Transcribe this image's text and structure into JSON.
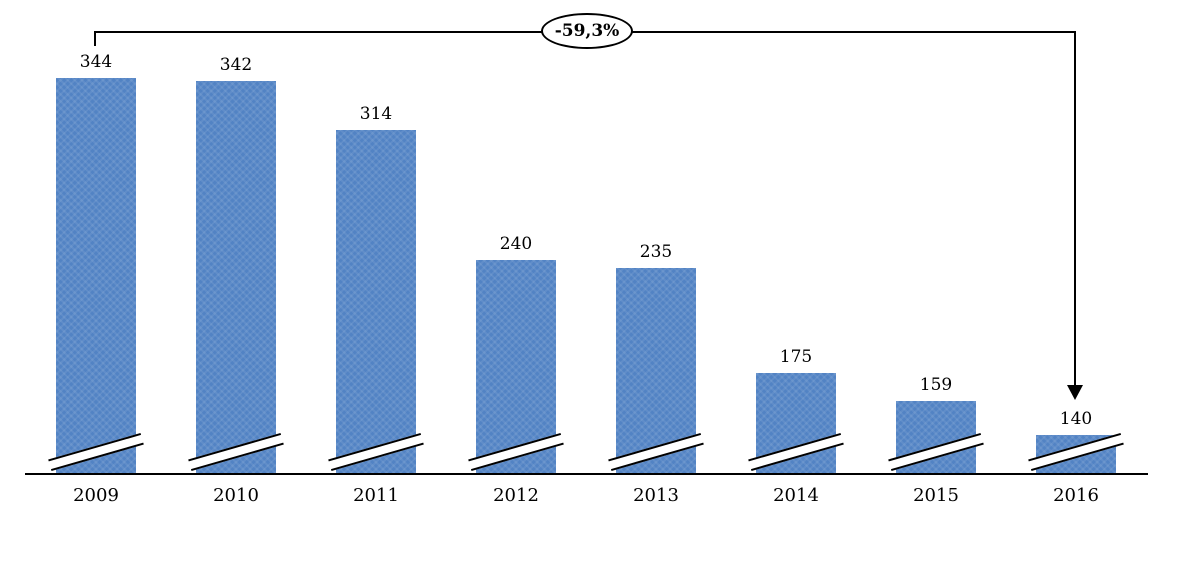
{
  "chart_data": {
    "type": "bar",
    "title": "",
    "xlabel": "",
    "ylabel": "",
    "categories": [
      "2009",
      "2010",
      "2011",
      "2012",
      "2013",
      "2014",
      "2015",
      "2016"
    ],
    "values": [
      344,
      342,
      314,
      240,
      235,
      175,
      159,
      140
    ],
    "legend": "none",
    "grid": false,
    "bar_color": "#5283c4",
    "line_color": "#000000",
    "axis_break_marks": true,
    "ylim_visual_start": 118,
    "annotation": {
      "label": "-59,3%",
      "from_category": "2009",
      "to_category": "2016"
    }
  }
}
